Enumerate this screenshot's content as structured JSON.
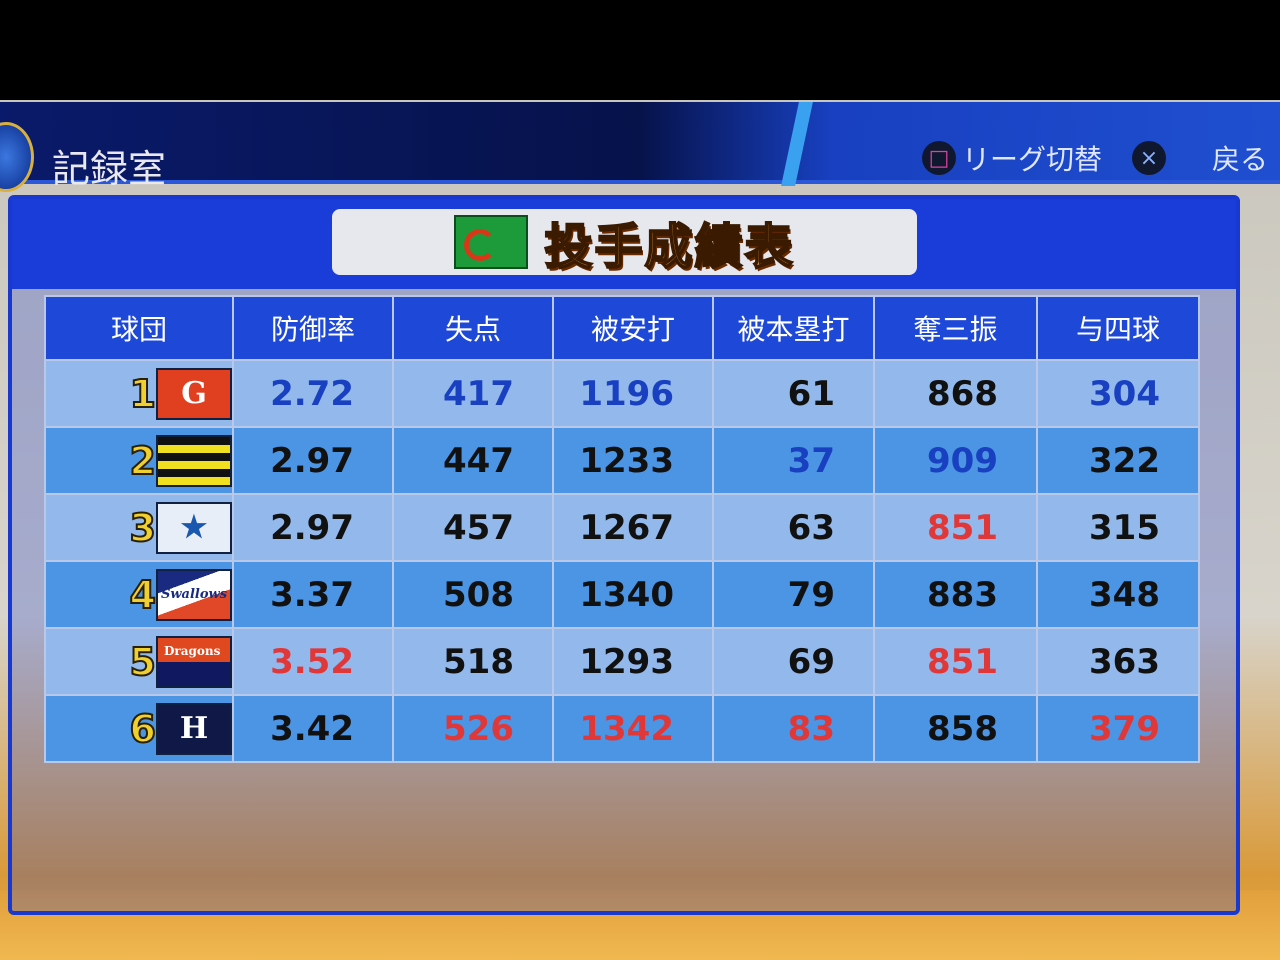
{
  "header": {
    "title": "記録室",
    "hints": [
      {
        "icon": "square-button-icon",
        "glyph": "□",
        "label": "リーグ切替"
      },
      {
        "icon": "cross-button-icon",
        "glyph": "×",
        "label": "戻る"
      }
    ]
  },
  "panel": {
    "title": "投手成績表"
  },
  "table": {
    "columns": [
      "球団",
      "防御率",
      "失点",
      "被安打",
      "被本塁打",
      "奪三振",
      "与四球"
    ],
    "rows": [
      {
        "rank": "1",
        "team_logo": "G",
        "logo_colors": [
          "#e04020",
          "#ffffff"
        ],
        "values": [
          "2.72",
          "417",
          "1196",
          "61",
          "868",
          "304"
        ],
        "highlight": [
          "best",
          "best",
          "best",
          "normal",
          "normal",
          "best"
        ]
      },
      {
        "rank": "2",
        "team_logo": "",
        "logo_colors": [
          "#f0e020",
          "#111111"
        ],
        "values": [
          "2.97",
          "447",
          "1233",
          "37",
          "909",
          "322"
        ],
        "highlight": [
          "normal",
          "normal",
          "normal",
          "best",
          "best",
          "normal"
        ]
      },
      {
        "rank": "3",
        "team_logo": "★",
        "logo_colors": [
          "#e8eef8",
          "#1a58b0"
        ],
        "values": [
          "2.97",
          "457",
          "1267",
          "63",
          "851",
          "315"
        ],
        "highlight": [
          "normal",
          "normal",
          "normal",
          "normal",
          "worst",
          "normal"
        ]
      },
      {
        "rank": "4",
        "team_logo": "Swallows",
        "logo_colors": [
          "#e04828",
          "#1a2a80"
        ],
        "values": [
          "3.37",
          "508",
          "1340",
          "79",
          "883",
          "348"
        ],
        "highlight": [
          "normal",
          "normal",
          "normal",
          "normal",
          "normal",
          "normal"
        ]
      },
      {
        "rank": "5",
        "team_logo": "Dragons",
        "logo_colors": [
          "#e04820",
          "#101860"
        ],
        "values": [
          "3.52",
          "518",
          "1293",
          "69",
          "851",
          "363"
        ],
        "highlight": [
          "worst",
          "normal",
          "normal",
          "normal",
          "worst",
          "normal"
        ]
      },
      {
        "rank": "6",
        "team_logo": "H",
        "logo_colors": [
          "#101848",
          "#ffffff"
        ],
        "values": [
          "3.42",
          "526",
          "1342",
          "83",
          "858",
          "379"
        ],
        "highlight": [
          "normal",
          "worst",
          "worst",
          "worst",
          "normal",
          "worst"
        ]
      }
    ]
  },
  "colors": {
    "best": "#1840c0",
    "worst": "#e03838",
    "normal": "#111111",
    "header": "#1e48d8"
  }
}
